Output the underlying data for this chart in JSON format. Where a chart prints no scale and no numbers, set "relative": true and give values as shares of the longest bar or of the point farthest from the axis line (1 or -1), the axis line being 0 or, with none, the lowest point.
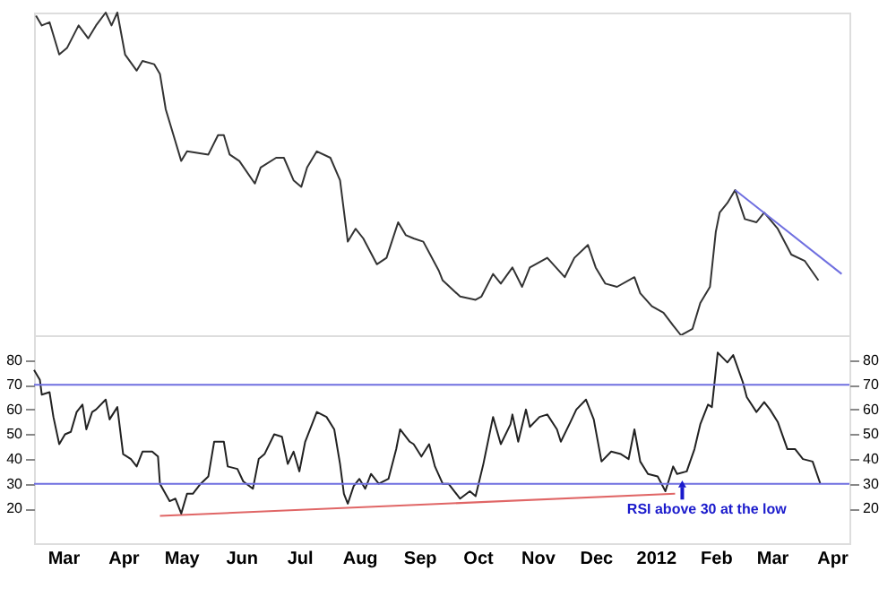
{
  "chart_data": [
    {
      "type": "line",
      "relative": true,
      "xlim": [
        "2011-03-01",
        "2012-04-25"
      ],
      "tick_labels": false,
      "series": [
        {
          "color": "#333333",
          "x": [
            "2011-03-02",
            "2011-03-05",
            "2011-03-09",
            "2011-03-14",
            "2011-03-18",
            "2011-03-24",
            "2011-03-29",
            "2011-04-02",
            "2011-04-07",
            "2011-04-10",
            "2011-04-13",
            "2011-04-17",
            "2011-04-23",
            "2011-04-26",
            "2011-05-02",
            "2011-05-05",
            "2011-05-08",
            "2011-05-12",
            "2011-05-16",
            "2011-05-19",
            "2011-05-30",
            "2011-06-04",
            "2011-06-07",
            "2011-06-10",
            "2011-06-15",
            "2011-06-23",
            "2011-06-26",
            "2011-07-04",
            "2011-07-08",
            "2011-07-13",
            "2011-07-17",
            "2011-07-20",
            "2011-07-25",
            "2011-08-01",
            "2011-08-06",
            "2011-08-10",
            "2011-08-14",
            "2011-08-18",
            "2011-08-25",
            "2011-08-30",
            "2011-09-05",
            "2011-09-09",
            "2011-09-13",
            "2011-09-18",
            "2011-09-26",
            "2011-09-28",
            "2011-10-07",
            "2011-10-15",
            "2011-10-18",
            "2011-10-24",
            "2011-10-28",
            "2011-11-03",
            "2011-11-08",
            "2011-11-12",
            "2011-11-21",
            "2011-11-30",
            "2011-12-05",
            "2011-12-12",
            "2011-12-16",
            "2011-12-21",
            "2011-12-27",
            "2012-01-05",
            "2012-01-08",
            "2012-01-14",
            "2012-01-20",
            "2012-01-25",
            "2012-01-29",
            "2012-02-04",
            "2012-02-08",
            "2012-02-13",
            "2012-02-16",
            "2012-02-18",
            "2012-02-22",
            "2012-02-26",
            "2012-03-02",
            "2012-03-08",
            "2012-03-12",
            "2012-03-19",
            "2012-03-26",
            "2012-04-02",
            "2012-04-09"
          ],
          "values": [
            0.99,
            0.96,
            0.97,
            0.87,
            0.89,
            0.96,
            0.92,
            0.96,
            1.0,
            0.96,
            1.0,
            0.87,
            0.82,
            0.85,
            0.84,
            0.81,
            0.7,
            0.62,
            0.54,
            0.57,
            0.56,
            0.62,
            0.62,
            0.56,
            0.54,
            0.47,
            0.52,
            0.55,
            0.55,
            0.48,
            0.46,
            0.52,
            0.57,
            0.55,
            0.48,
            0.29,
            0.33,
            0.3,
            0.22,
            0.24,
            0.35,
            0.31,
            0.3,
            0.29,
            0.2,
            0.17,
            0.12,
            0.11,
            0.12,
            0.19,
            0.16,
            0.21,
            0.15,
            0.21,
            0.24,
            0.18,
            0.24,
            0.28,
            0.21,
            0.16,
            0.15,
            0.18,
            0.13,
            0.09,
            0.07,
            0.03,
            0.0,
            0.02,
            0.1,
            0.15,
            0.32,
            0.38,
            0.41,
            0.45,
            0.36,
            0.35,
            0.38,
            0.33,
            0.25,
            0.23,
            0.17
          ]
        },
        {
          "color": "#6f6fe0",
          "x": [
            "2012-02-26",
            "2012-04-21"
          ],
          "values": [
            0.45,
            0.19
          ]
        }
      ]
    },
    {
      "type": "line",
      "xlim": [
        "2011-03-01",
        "2012-04-25"
      ],
      "ylim": [
        6,
        90
      ],
      "yticks": [
        20,
        30,
        40,
        50,
        60,
        70,
        80
      ],
      "y2lim": [
        6,
        90
      ],
      "y2ticks": [
        20,
        30,
        40,
        50,
        60,
        70,
        80
      ],
      "xticks": [
        {
          "value": "2011-03-16",
          "label": "Mar"
        },
        {
          "value": "2011-04-16",
          "label": "Apr"
        },
        {
          "value": "2011-05-16",
          "label": "May"
        },
        {
          "value": "2011-06-16",
          "label": "Jun"
        },
        {
          "value": "2011-07-16",
          "label": "Jul"
        },
        {
          "value": "2011-08-16",
          "label": "Aug"
        },
        {
          "value": "2011-09-16",
          "label": "Sep"
        },
        {
          "value": "2011-10-16",
          "label": "Oct"
        },
        {
          "value": "2011-11-16",
          "label": "Nov"
        },
        {
          "value": "2011-12-16",
          "label": "Dec"
        },
        {
          "value": "2012-01-16",
          "label": "2012"
        },
        {
          "value": "2012-02-16",
          "label": "Feb"
        },
        {
          "value": "2012-03-16",
          "label": "Mar"
        },
        {
          "value": "2012-04-16",
          "label": "Apr"
        }
      ],
      "ref_lines": [
        {
          "axis": "y",
          "value": 70,
          "color": "#6f6fe0"
        },
        {
          "axis": "y",
          "value": 30,
          "color": "#6f6fe0"
        }
      ],
      "annotations": [
        "RSI above 30 at the low"
      ],
      "series": [
        {
          "color": "#e06666",
          "x": [
            "2011-05-05",
            "2012-01-26"
          ],
          "values": [
            17,
            26
          ]
        },
        {
          "color": "#222222",
          "x": [
            "2011-03-01",
            "2011-03-04",
            "2011-03-05",
            "2011-03-09",
            "2011-03-11",
            "2011-03-14",
            "2011-03-17",
            "2011-03-20",
            "2011-03-23",
            "2011-03-26",
            "2011-03-28",
            "2011-03-31",
            "2011-04-02",
            "2011-04-07",
            "2011-04-09",
            "2011-04-13",
            "2011-04-16",
            "2011-04-20",
            "2011-04-23",
            "2011-04-26",
            "2011-05-01",
            "2011-05-04",
            "2011-05-05",
            "2011-05-10",
            "2011-05-13",
            "2011-05-16",
            "2011-05-19",
            "2011-05-22",
            "2011-05-26",
            "2011-05-30",
            "2011-06-02",
            "2011-06-07",
            "2011-06-09",
            "2011-06-14",
            "2011-06-17",
            "2011-06-22",
            "2011-06-25",
            "2011-06-28",
            "2011-07-03",
            "2011-07-07",
            "2011-07-10",
            "2011-07-13",
            "2011-07-16",
            "2011-07-19",
            "2011-07-25",
            "2011-07-30",
            "2011-08-03",
            "2011-08-06",
            "2011-08-08",
            "2011-08-10",
            "2011-08-13",
            "2011-08-16",
            "2011-08-19",
            "2011-08-22",
            "2011-08-26",
            "2011-08-31",
            "2011-09-04",
            "2011-09-06",
            "2011-09-11",
            "2011-09-13",
            "2011-09-17",
            "2011-09-21",
            "2011-09-24",
            "2011-09-28",
            "2011-10-01",
            "2011-10-07",
            "2011-10-12",
            "2011-10-15",
            "2011-10-19",
            "2011-10-24",
            "2011-10-28",
            "2011-11-02",
            "2011-11-03",
            "2011-11-06",
            "2011-11-10",
            "2011-11-12",
            "2011-11-17",
            "2011-11-21",
            "2011-11-26",
            "2011-11-28",
            "2011-12-03",
            "2011-12-06",
            "2011-12-11",
            "2011-12-15",
            "2011-12-19",
            "2011-12-24",
            "2011-12-29",
            "2012-01-02",
            "2012-01-05",
            "2012-01-08",
            "2012-01-12",
            "2012-01-17",
            "2012-01-21",
            "2012-01-25",
            "2012-01-27",
            "2012-02-01",
            "2012-02-05",
            "2012-02-08",
            "2012-02-12",
            "2012-02-14",
            "2012-02-17",
            "2012-02-22",
            "2012-02-25",
            "2012-03-01",
            "2012-03-03",
            "2012-03-08",
            "2012-03-12",
            "2012-03-15",
            "2012-03-19",
            "2012-03-24",
            "2012-03-28",
            "2012-04-01",
            "2012-04-06",
            "2012-04-10"
          ],
          "values": [
            76,
            72,
            66,
            67,
            57,
            46,
            50,
            51,
            59,
            62,
            52,
            59,
            60,
            64,
            56,
            61,
            42,
            40,
            37,
            43,
            43,
            41,
            30,
            23,
            24,
            18,
            26,
            26,
            30,
            33,
            47,
            47,
            37,
            36,
            31,
            28,
            40,
            42,
            50,
            49,
            38,
            43,
            35,
            47,
            59,
            57,
            52,
            38,
            26,
            22,
            29,
            32,
            28,
            34,
            30,
            32,
            44,
            52,
            47,
            46,
            41,
            46,
            37,
            30,
            30,
            24,
            27,
            25,
            38,
            57,
            46,
            54,
            58,
            47,
            60,
            53,
            57,
            58,
            52,
            47,
            55,
            60,
            64,
            56,
            39,
            43,
            42,
            40,
            52,
            39,
            34,
            33,
            27,
            37,
            34,
            35,
            44,
            54,
            62,
            61,
            83,
            79,
            82,
            71,
            65,
            59,
            63,
            60,
            55,
            44,
            44,
            40,
            39,
            30
          ]
        }
      ]
    }
  ]
}
